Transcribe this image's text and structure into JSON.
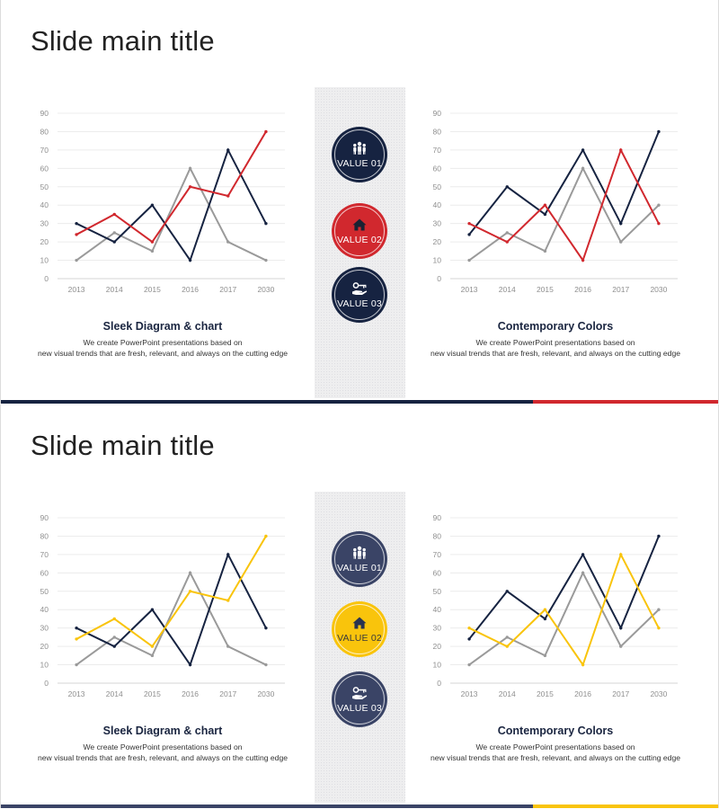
{
  "slides": [
    {
      "title": "Slide main title",
      "primary_color": "#162341",
      "accent_color": "#d1282e",
      "gray_color": "#9a9a9a",
      "values": [
        {
          "label": "VALUE 01",
          "icon": "people-icon",
          "color": "#162341"
        },
        {
          "label": "VALUE 02",
          "icon": "house-icon",
          "color": "#d1282e"
        },
        {
          "label": "VALUE 03",
          "icon": "hand-key-icon",
          "color": "#162341"
        }
      ],
      "left_caption": {
        "title": "Sleek Diagram & chart",
        "line1": "We create PowerPoint presentations based on",
        "line2": "new visual trends that are fresh, relevant, and always on the cutting edge"
      },
      "right_caption": {
        "title": "Contemporary Colors",
        "line1": "We create PowerPoint presentations based on",
        "line2": "new visual trends that are fresh, relevant, and always on the cutting edge"
      }
    },
    {
      "title": "Slide main title",
      "primary_color": "#3a4466",
      "accent_color": "#f9c40c",
      "gray_color": "#9a9a9a",
      "values": [
        {
          "label": "VALUE 01",
          "icon": "people-icon",
          "color": "#3a4466"
        },
        {
          "label": "VALUE 02",
          "icon": "house-icon",
          "color": "#f9c40c"
        },
        {
          "label": "VALUE 03",
          "icon": "hand-key-icon",
          "color": "#3a4466"
        }
      ],
      "left_caption": {
        "title": "Sleek Diagram & chart",
        "line1": "We create PowerPoint presentations based on",
        "line2": "new visual trends that are fresh, relevant, and always on the cutting edge"
      },
      "right_caption": {
        "title": "Contemporary Colors",
        "line1": "We create PowerPoint presentations based on",
        "line2": "new visual trends that are fresh, relevant, and always on the cutting edge"
      }
    }
  ],
  "chart_data": [
    {
      "type": "line",
      "x": [
        "2013",
        "2014",
        "2015",
        "2016",
        "2017",
        "2030"
      ],
      "yticks": [
        0,
        10,
        20,
        30,
        40,
        50,
        60,
        70,
        80,
        90
      ],
      "ylim": [
        0,
        90
      ],
      "grid": true,
      "series": [
        {
          "values": [
            10,
            25,
            15,
            60,
            20,
            10
          ],
          "color": "#9a9a9a"
        },
        {
          "values": [
            30,
            20,
            40,
            10,
            70,
            30
          ],
          "color": "#162341"
        },
        {
          "values": [
            24,
            35,
            20,
            50,
            45,
            80
          ],
          "color": "#d1282e"
        }
      ]
    },
    {
      "type": "line",
      "x": [
        "2013",
        "2014",
        "2015",
        "2016",
        "2017",
        "2030"
      ],
      "yticks": [
        0,
        10,
        20,
        30,
        40,
        50,
        60,
        70,
        80,
        90
      ],
      "ylim": [
        0,
        90
      ],
      "grid": true,
      "series": [
        {
          "values": [
            10,
            25,
            15,
            60,
            20,
            40
          ],
          "color": "#9a9a9a"
        },
        {
          "values": [
            24,
            50,
            35,
            70,
            30,
            80
          ],
          "color": "#162341"
        },
        {
          "values": [
            30,
            20,
            40,
            10,
            70,
            30
          ],
          "color": "#d1282e"
        }
      ]
    },
    {
      "type": "line",
      "x": [
        "2013",
        "2014",
        "2015",
        "2016",
        "2017",
        "2030"
      ],
      "yticks": [
        0,
        10,
        20,
        30,
        40,
        50,
        60,
        70,
        80,
        90
      ],
      "ylim": [
        0,
        90
      ],
      "grid": true,
      "series": [
        {
          "values": [
            10,
            25,
            15,
            60,
            20,
            10
          ],
          "color": "#9a9a9a"
        },
        {
          "values": [
            30,
            20,
            40,
            10,
            70,
            30
          ],
          "color": "#162341"
        },
        {
          "values": [
            24,
            35,
            20,
            50,
            45,
            80
          ],
          "color": "#f9c40c"
        }
      ]
    },
    {
      "type": "line",
      "x": [
        "2013",
        "2014",
        "2015",
        "2016",
        "2017",
        "2030"
      ],
      "yticks": [
        0,
        10,
        20,
        30,
        40,
        50,
        60,
        70,
        80,
        90
      ],
      "ylim": [
        0,
        90
      ],
      "grid": true,
      "series": [
        {
          "values": [
            10,
            25,
            15,
            60,
            20,
            40
          ],
          "color": "#9a9a9a"
        },
        {
          "values": [
            24,
            50,
            35,
            70,
            30,
            80
          ],
          "color": "#162341"
        },
        {
          "values": [
            30,
            20,
            40,
            10,
            70,
            30
          ],
          "color": "#f9c40c"
        }
      ]
    }
  ]
}
